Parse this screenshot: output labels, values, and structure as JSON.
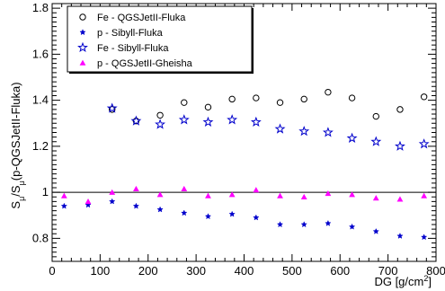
{
  "chart_data": {
    "type": "scatter",
    "xlabel": "DG [g/cm",
    "xlabel_sup": "2",
    "xlabel_end": "]",
    "ylabel_S": "S",
    "ylabel_sub": "μ",
    "ylabel_slash": "/S",
    "ylabel_paren": "(p-QGSJetII-Fluka)",
    "xlim": [
      0,
      800
    ],
    "ylim": [
      0.7,
      1.82
    ],
    "xticks": [
      0,
      100,
      200,
      300,
      400,
      500,
      600,
      700,
      800
    ],
    "yticks": [
      0.8,
      1,
      1.2,
      1.4,
      1.6,
      1.8
    ],
    "ytick_labels": [
      "0.8",
      "1",
      "1.2",
      "1.4",
      "1.6",
      "1.8"
    ],
    "reference_line": 1,
    "grid": false,
    "legend_position": "top-left",
    "series": [
      {
        "name": "Fe - QGSJetII-Fluka",
        "marker": "circle-open",
        "color": "#000000",
        "x": [
          125,
          175,
          225,
          275,
          325,
          375,
          425,
          475,
          525,
          575,
          625,
          675,
          725,
          775
        ],
        "y": [
          1.36,
          1.31,
          1.335,
          1.39,
          1.37,
          1.405,
          1.41,
          1.39,
          1.405,
          1.435,
          1.41,
          1.33,
          1.36,
          1.415
        ]
      },
      {
        "name": "p - Sibyll-Fluka",
        "marker": "star-filled",
        "color": "#0000cc",
        "x": [
          25,
          75,
          125,
          175,
          225,
          275,
          325,
          375,
          425,
          475,
          525,
          575,
          625,
          675,
          725,
          775
        ],
        "y": [
          0.94,
          0.945,
          0.96,
          0.94,
          0.925,
          0.91,
          0.895,
          0.905,
          0.89,
          0.86,
          0.86,
          0.865,
          0.85,
          0.83,
          0.81,
          0.805
        ]
      },
      {
        "name": "Fe - Sibyll-Fluka",
        "marker": "star-open",
        "color": "#0000cc",
        "x": [
          125,
          175,
          225,
          275,
          325,
          375,
          425,
          475,
          525,
          575,
          625,
          675,
          725,
          775
        ],
        "y": [
          1.365,
          1.31,
          1.295,
          1.315,
          1.305,
          1.315,
          1.305,
          1.275,
          1.265,
          1.26,
          1.235,
          1.22,
          1.2,
          1.21
        ]
      },
      {
        "name": "p - QGSJetII-Gheisha",
        "marker": "triangle-filled",
        "color": "#ff00ff",
        "x": [
          25,
          75,
          125,
          175,
          225,
          275,
          325,
          375,
          425,
          475,
          525,
          575,
          625,
          675,
          725,
          775
        ],
        "y": [
          0.985,
          0.96,
          1.0,
          1.015,
          0.99,
          1.015,
          0.985,
          0.99,
          1.01,
          0.985,
          0.98,
          0.995,
          0.99,
          0.975,
          0.97,
          0.985
        ]
      }
    ]
  }
}
